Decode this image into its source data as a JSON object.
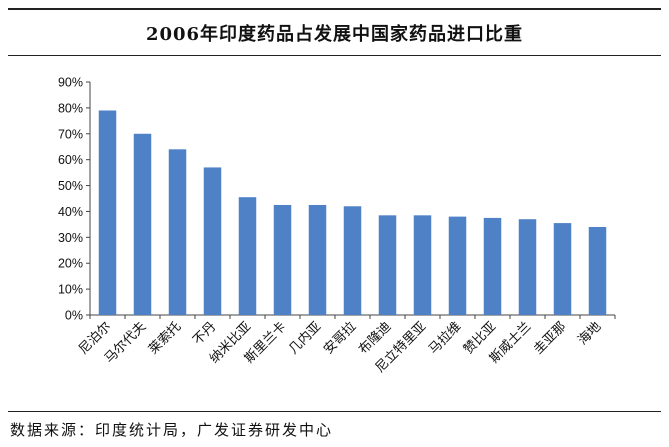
{
  "chart_data": {
    "type": "bar",
    "title": "2006年印度药品占发展中国家药品进口比重",
    "xlabel": "",
    "ylabel": "",
    "ylim": [
      0,
      90
    ],
    "yticks": [
      0,
      10,
      20,
      30,
      40,
      50,
      60,
      70,
      80,
      90
    ],
    "ytick_labels": [
      "0%",
      "10%",
      "20%",
      "30%",
      "40%",
      "50%",
      "60%",
      "70%",
      "80%",
      "90%"
    ],
    "categories": [
      "尼泊尔",
      "马尔代夫",
      "莱索托",
      "不丹",
      "纳米比亚",
      "斯里兰卡",
      "几内亚",
      "安哥拉",
      "布隆迪",
      "尼立特里亚",
      "马拉维",
      "赞比亚",
      "斯威士兰",
      "圭亚那",
      "海地"
    ],
    "values": [
      79,
      70,
      64,
      57,
      45.5,
      42.5,
      42.5,
      42,
      38.5,
      38.5,
      38,
      37.5,
      37,
      35.5,
      34
    ],
    "bar_color": "#4f81c7",
    "grid": false
  },
  "footer": {
    "source": "数据来源：印度统计局，广发证券研发中心"
  }
}
